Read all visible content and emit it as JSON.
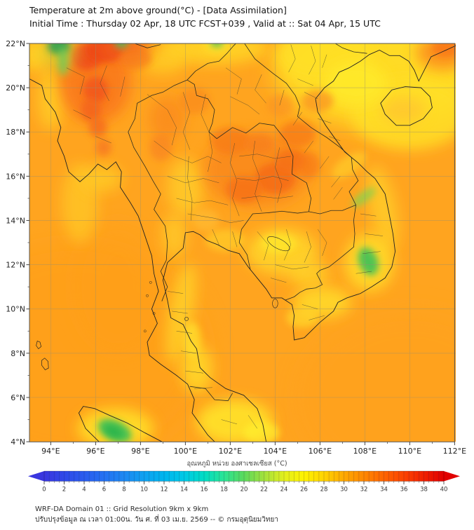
{
  "header": {
    "line1": "Temperature at 2m above ground(°C) - [Data Assimilation]",
    "line2": "Initial Time : Thursday 02 Apr, 18 UTC FCST+039 , Valid at :: Sat 04 Apr, 15 UTC"
  },
  "map": {
    "x_tick_labels": [
      "94°E",
      "96°E",
      "98°E",
      "100°E",
      "102°E",
      "104°E",
      "106°E",
      "108°E",
      "110°E",
      "112°E"
    ],
    "y_tick_labels": [
      "22°N",
      "20°N",
      "18°N",
      "16°N",
      "14°N",
      "12°N",
      "10°N",
      "8°N",
      "6°N",
      "4°N"
    ],
    "lon_range": [
      93.05,
      112.05
    ],
    "lat_range": [
      4,
      22
    ]
  },
  "colorbar": {
    "title": "อุณหภูมิ หน่วย องศาเซลเซียส (°C)",
    "min": 0,
    "max": 40,
    "tick_labels": [
      "0",
      "2",
      "4",
      "6",
      "8",
      "10",
      "12",
      "14",
      "16",
      "18",
      "20",
      "22",
      "24",
      "26",
      "28",
      "30",
      "32",
      "34",
      "36",
      "38",
      "40"
    ],
    "stops": [
      {
        "v": 0,
        "c": "#3a36df"
      },
      {
        "v": 2,
        "c": "#2f49e8"
      },
      {
        "v": 4,
        "c": "#2a5cee"
      },
      {
        "v": 6,
        "c": "#2471f2"
      },
      {
        "v": 8,
        "c": "#1d88f2"
      },
      {
        "v": 10,
        "c": "#0fa1f0"
      },
      {
        "v": 12,
        "c": "#00b5ee"
      },
      {
        "v": 14,
        "c": "#00c9e6"
      },
      {
        "v": 16,
        "c": "#00dcc4"
      },
      {
        "v": 18,
        "c": "#2ae494"
      },
      {
        "v": 20,
        "c": "#5bd95b"
      },
      {
        "v": 22,
        "c": "#a2e13c"
      },
      {
        "v": 24,
        "c": "#e2ef1d"
      },
      {
        "v": 26,
        "c": "#fff200"
      },
      {
        "v": 28,
        "c": "#ffd300"
      },
      {
        "v": 30,
        "c": "#ffa900"
      },
      {
        "v": 32,
        "c": "#ff8700"
      },
      {
        "v": 34,
        "c": "#ff6400"
      },
      {
        "v": 36,
        "c": "#fc4300"
      },
      {
        "v": 38,
        "c": "#f02000"
      },
      {
        "v": 40,
        "c": "#e10000"
      }
    ]
  },
  "footer": {
    "line1": "WRF-DA Domain 01 :: Grid Resolution 9km x 9km",
    "line2": "ปรับปรุงข้อมูล ณ เวลา 01:00น. วัน ศ. ที่ 03 เม.ย. 2569 -- © กรมอุตุนิยมวิทยา"
  },
  "chart_data": {
    "type": "heatmap",
    "title": "Temperature at 2m above ground (°C) - Data Assimilation",
    "x": "longitude 94°E–112°E",
    "y": "latitude 4°N–22°N",
    "value_range_c": [
      0,
      40
    ],
    "background_sea_temp_c": 30,
    "notable_features": [
      {
        "area": "central Myanmar 95-97E 18-22N",
        "temp_c": 35
      },
      {
        "area": "northeast Thailand / Laos 102-105E 15-18N",
        "temp_c": 34
      },
      {
        "area": "Gulf of Tonkin / Hainan 105-112E 17-22N",
        "temp_c": 27
      },
      {
        "area": "Cambodia lowlands 103-106E 11-13.5N",
        "temp_c": 28
      },
      {
        "area": "green cool spots: NW corner 94.4E 21.9N, Sumatra 96.8E 4.5N, SE Vietnam coast 108.2E 12.1N",
        "temp_c": 21
      }
    ]
  }
}
